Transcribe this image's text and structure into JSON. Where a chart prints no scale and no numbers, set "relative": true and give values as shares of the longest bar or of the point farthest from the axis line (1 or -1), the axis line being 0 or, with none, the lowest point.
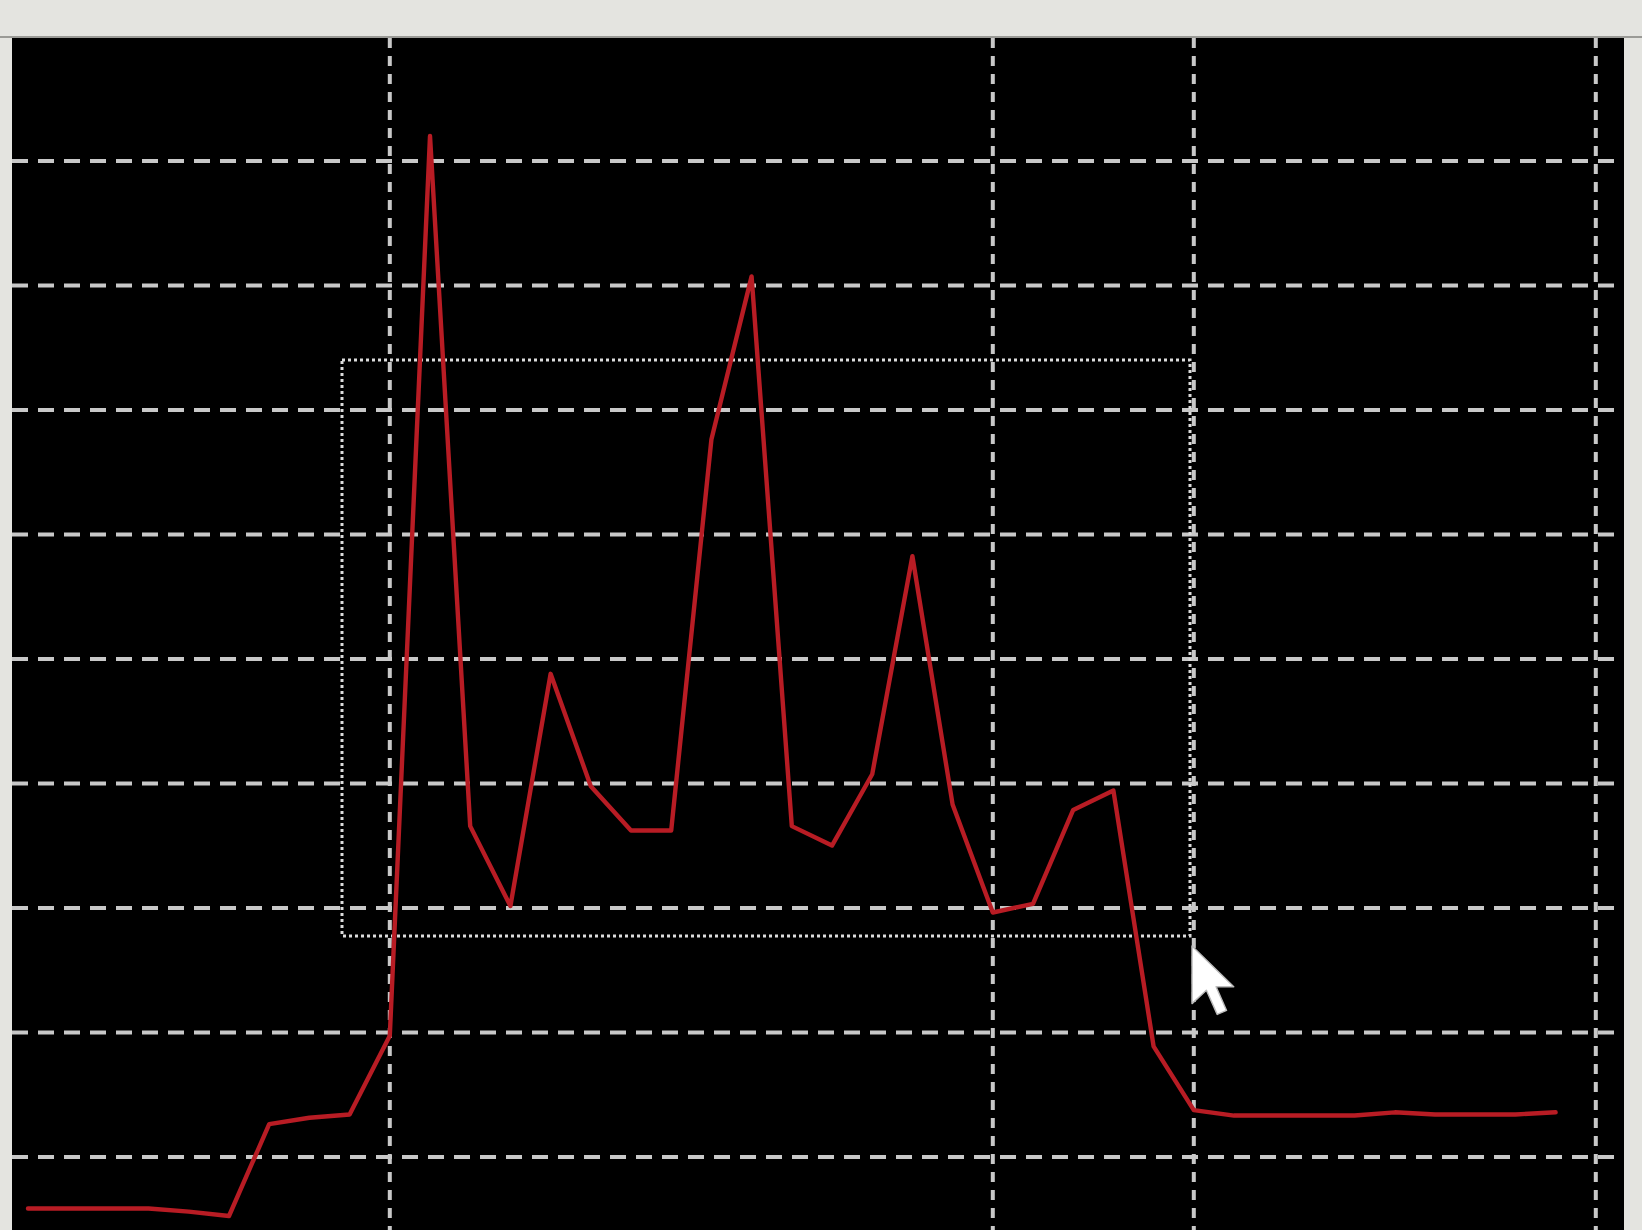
{
  "chart_data": {
    "type": "line",
    "relative": true,
    "grid": true,
    "categories": [
      null,
      null,
      null,
      null,
      null,
      null,
      null,
      null,
      null,
      null,
      null,
      null,
      null,
      null,
      null,
      null,
      null,
      null,
      null,
      null,
      null,
      null,
      null,
      null,
      null,
      null,
      null,
      null,
      null,
      null,
      null,
      null,
      null,
      null,
      null,
      null,
      null,
      null,
      null
    ],
    "series": [
      {
        "color": "#b81c24",
        "values": [
          0.007,
          0.007,
          0.007,
          0.007,
          0.004,
          0,
          0.085,
          0.091,
          0.094,
          0.167,
          1,
          0.361,
          0.287,
          0.502,
          0.398,
          0.357,
          0.357,
          0.719,
          0.87,
          0.361,
          0.343,
          0.409,
          0.611,
          0.381,
          0.281,
          0.289,
          0.376,
          0.394,
          0.157,
          0.098,
          0.093,
          0.093,
          0.093,
          0.093,
          0.096,
          0.094,
          0.094,
          0.094,
          0.096
        ]
      }
    ]
  }
}
